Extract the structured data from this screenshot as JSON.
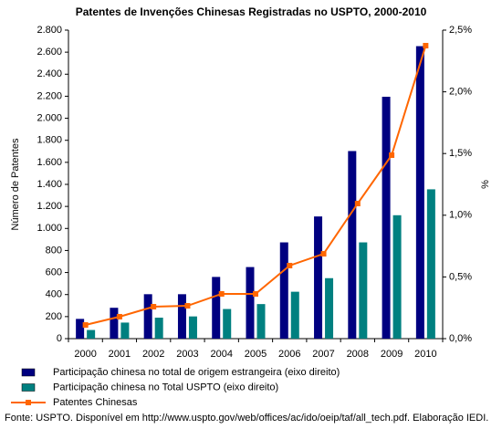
{
  "chart_data": {
    "type": "bar",
    "title": "Patentes de Invenções Chinesas Registradas no USPTO, 2000-2010",
    "ylabel": "Número de Patentes",
    "y2label": "%",
    "source": "Fonte: USPTO. Disponível em http://www.uspto.gov/web/offices/ac/ido/oeip/taf/all_tech.pdf. Elaboração IEDI.",
    "categories": [
      "2000",
      "2001",
      "2002",
      "2003",
      "2004",
      "2005",
      "2006",
      "2007",
      "2008",
      "2009",
      "2010"
    ],
    "series": [
      {
        "name": "Participação chinesa no total de origem estrangeira (eixo direito)",
        "type": "bar",
        "axis": "y2",
        "color": "#000080",
        "values": [
          0.16,
          0.25,
          0.36,
          0.36,
          0.5,
          0.58,
          0.78,
          0.99,
          1.52,
          1.96,
          2.37
        ]
      },
      {
        "name": "Participação chinesa no Total USPTO (eixo direito)",
        "type": "bar",
        "axis": "y2",
        "color": "#008080",
        "values": [
          0.07,
          0.13,
          0.17,
          0.18,
          0.24,
          0.28,
          0.38,
          0.49,
          0.78,
          1.0,
          1.21
        ]
      },
      {
        "name": "Patentes Chinesas",
        "type": "line",
        "color": "#ff6600",
        "values": [
          124,
          199,
          290,
          298,
          406,
          406,
          663,
          770,
          1226,
          1665,
          2659
        ]
      }
    ],
    "ylim": [
      0,
      2800
    ],
    "yticks": [
      0,
      200,
      400,
      600,
      800,
      {
        "value": 1000,
        "label": "1.000"
      },
      {
        "value": 1200,
        "label": "1.200"
      },
      {
        "value": 1400,
        "label": "1.400"
      },
      {
        "value": 1600,
        "label": "1.600"
      },
      {
        "value": 1800,
        "label": "1.800"
      },
      {
        "value": 2000,
        "label": "2.000"
      },
      {
        "value": 2200,
        "label": "2.200"
      },
      {
        "value": 2400,
        "label": "2.400"
      },
      {
        "value": 2600,
        "label": "2.600"
      },
      {
        "value": 2800,
        "label": "2.800"
      }
    ],
    "y2lim": [
      0,
      2.5
    ],
    "y2ticks": [
      {
        "value": 0,
        "label": "0,0%"
      },
      {
        "value": 0.5,
        "label": "0,5%"
      },
      {
        "value": 1,
        "label": "1,0%"
      },
      {
        "value": 1.5,
        "label": "1,5%"
      },
      {
        "value": 2,
        "label": "2,0%"
      },
      {
        "value": 2.5,
        "label": "2,5%"
      }
    ],
    "grid": false
  }
}
